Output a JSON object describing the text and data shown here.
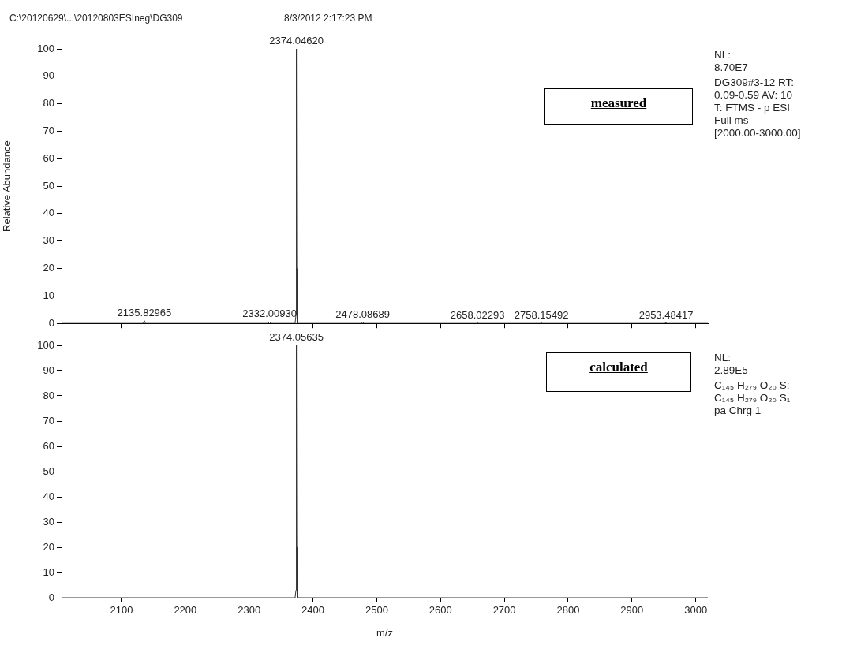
{
  "chart_data": [
    {
      "type": "line",
      "title": "C:\\20120629\\...\\20120803ESIneg\\DG309",
      "subtitle": "8/3/2012 2:17:23 PM",
      "ylabel": "Relative Abundance",
      "series": [
        {
          "color": "#333333",
          "x": [
            2006,
            2134,
            2135.83,
            2137.5,
            2330,
            2332.01,
            2334,
            2372,
            2373.4,
            2374.05,
            2374.7,
            2375.4,
            2476,
            2478.09,
            2480,
            2656,
            2658.02,
            2660,
            2756,
            2758.15,
            2760,
            2951,
            2953.48,
            2955,
            3019
          ],
          "values": [
            0,
            0,
            1,
            0,
            0,
            0.6,
            0,
            0,
            3,
            100,
            20,
            0,
            0,
            0.4,
            0,
            0,
            0.2,
            0,
            0,
            0.2,
            0,
            0,
            0.2,
            0,
            0
          ]
        }
      ],
      "xlim": [
        2006,
        3019
      ],
      "xticks": [
        2100,
        2200,
        2300,
        2400,
        2500,
        2600,
        2700,
        2800,
        2900,
        3000
      ],
      "ylim": [
        0,
        100
      ],
      "yticks": [
        0,
        10,
        20,
        30,
        40,
        50,
        60,
        70,
        80,
        90,
        100
      ],
      "grid": false,
      "tick_labels": "y",
      "annotations": [
        {
          "text": "2374.04620",
          "x": 2374.05,
          "y": 100
        },
        {
          "text": "2135.82965",
          "x": 2135.83,
          "y": 1
        },
        {
          "text": "2332.00930",
          "x": 2332.01,
          "y": 0.6
        },
        {
          "text": "2478.08689",
          "x": 2478.09,
          "y": 0.4
        },
        {
          "text": "2658.02293",
          "x": 2658.02,
          "y": 0.2
        },
        {
          "text": "2758.15492",
          "x": 2758.15,
          "y": 0.2
        },
        {
          "text": "2953.48417",
          "x": 2953.48,
          "y": 0.2
        },
        "measured",
        "NL:",
        "8.70E7",
        "DG309#3-12  RT:",
        "0.09-0.59  AV: 10",
        "T: FTMS - p ESI",
        "Full ms",
        "[2000.00-3000.00]"
      ]
    },
    {
      "type": "line",
      "xlabel": "m/z",
      "series": [
        {
          "color": "#333333",
          "x": [
            2006,
            2372,
            2373.4,
            2374.06,
            2374.7,
            2375.4,
            3019
          ],
          "values": [
            0,
            0,
            3,
            100,
            20,
            0,
            0
          ]
        }
      ],
      "xlim": [
        2006,
        3019
      ],
      "xticks": [
        2100,
        2200,
        2300,
        2400,
        2500,
        2600,
        2700,
        2800,
        2900,
        3000
      ],
      "ylim": [
        0,
        100
      ],
      "yticks": [
        0,
        10,
        20,
        30,
        40,
        50,
        60,
        70,
        80,
        90,
        100
      ],
      "grid": false,
      "annotations": [
        {
          "text": "2374.05635",
          "x": 2374.06,
          "y": 100
        },
        "calculated",
        "NL:",
        "2.89E5",
        "C₁₄₅ H₂₇₉ O₂₀ S:",
        "C₁₄₅ H₂₇₉ O₂₀ S₁",
        "pa Chrg 1"
      ]
    }
  ]
}
